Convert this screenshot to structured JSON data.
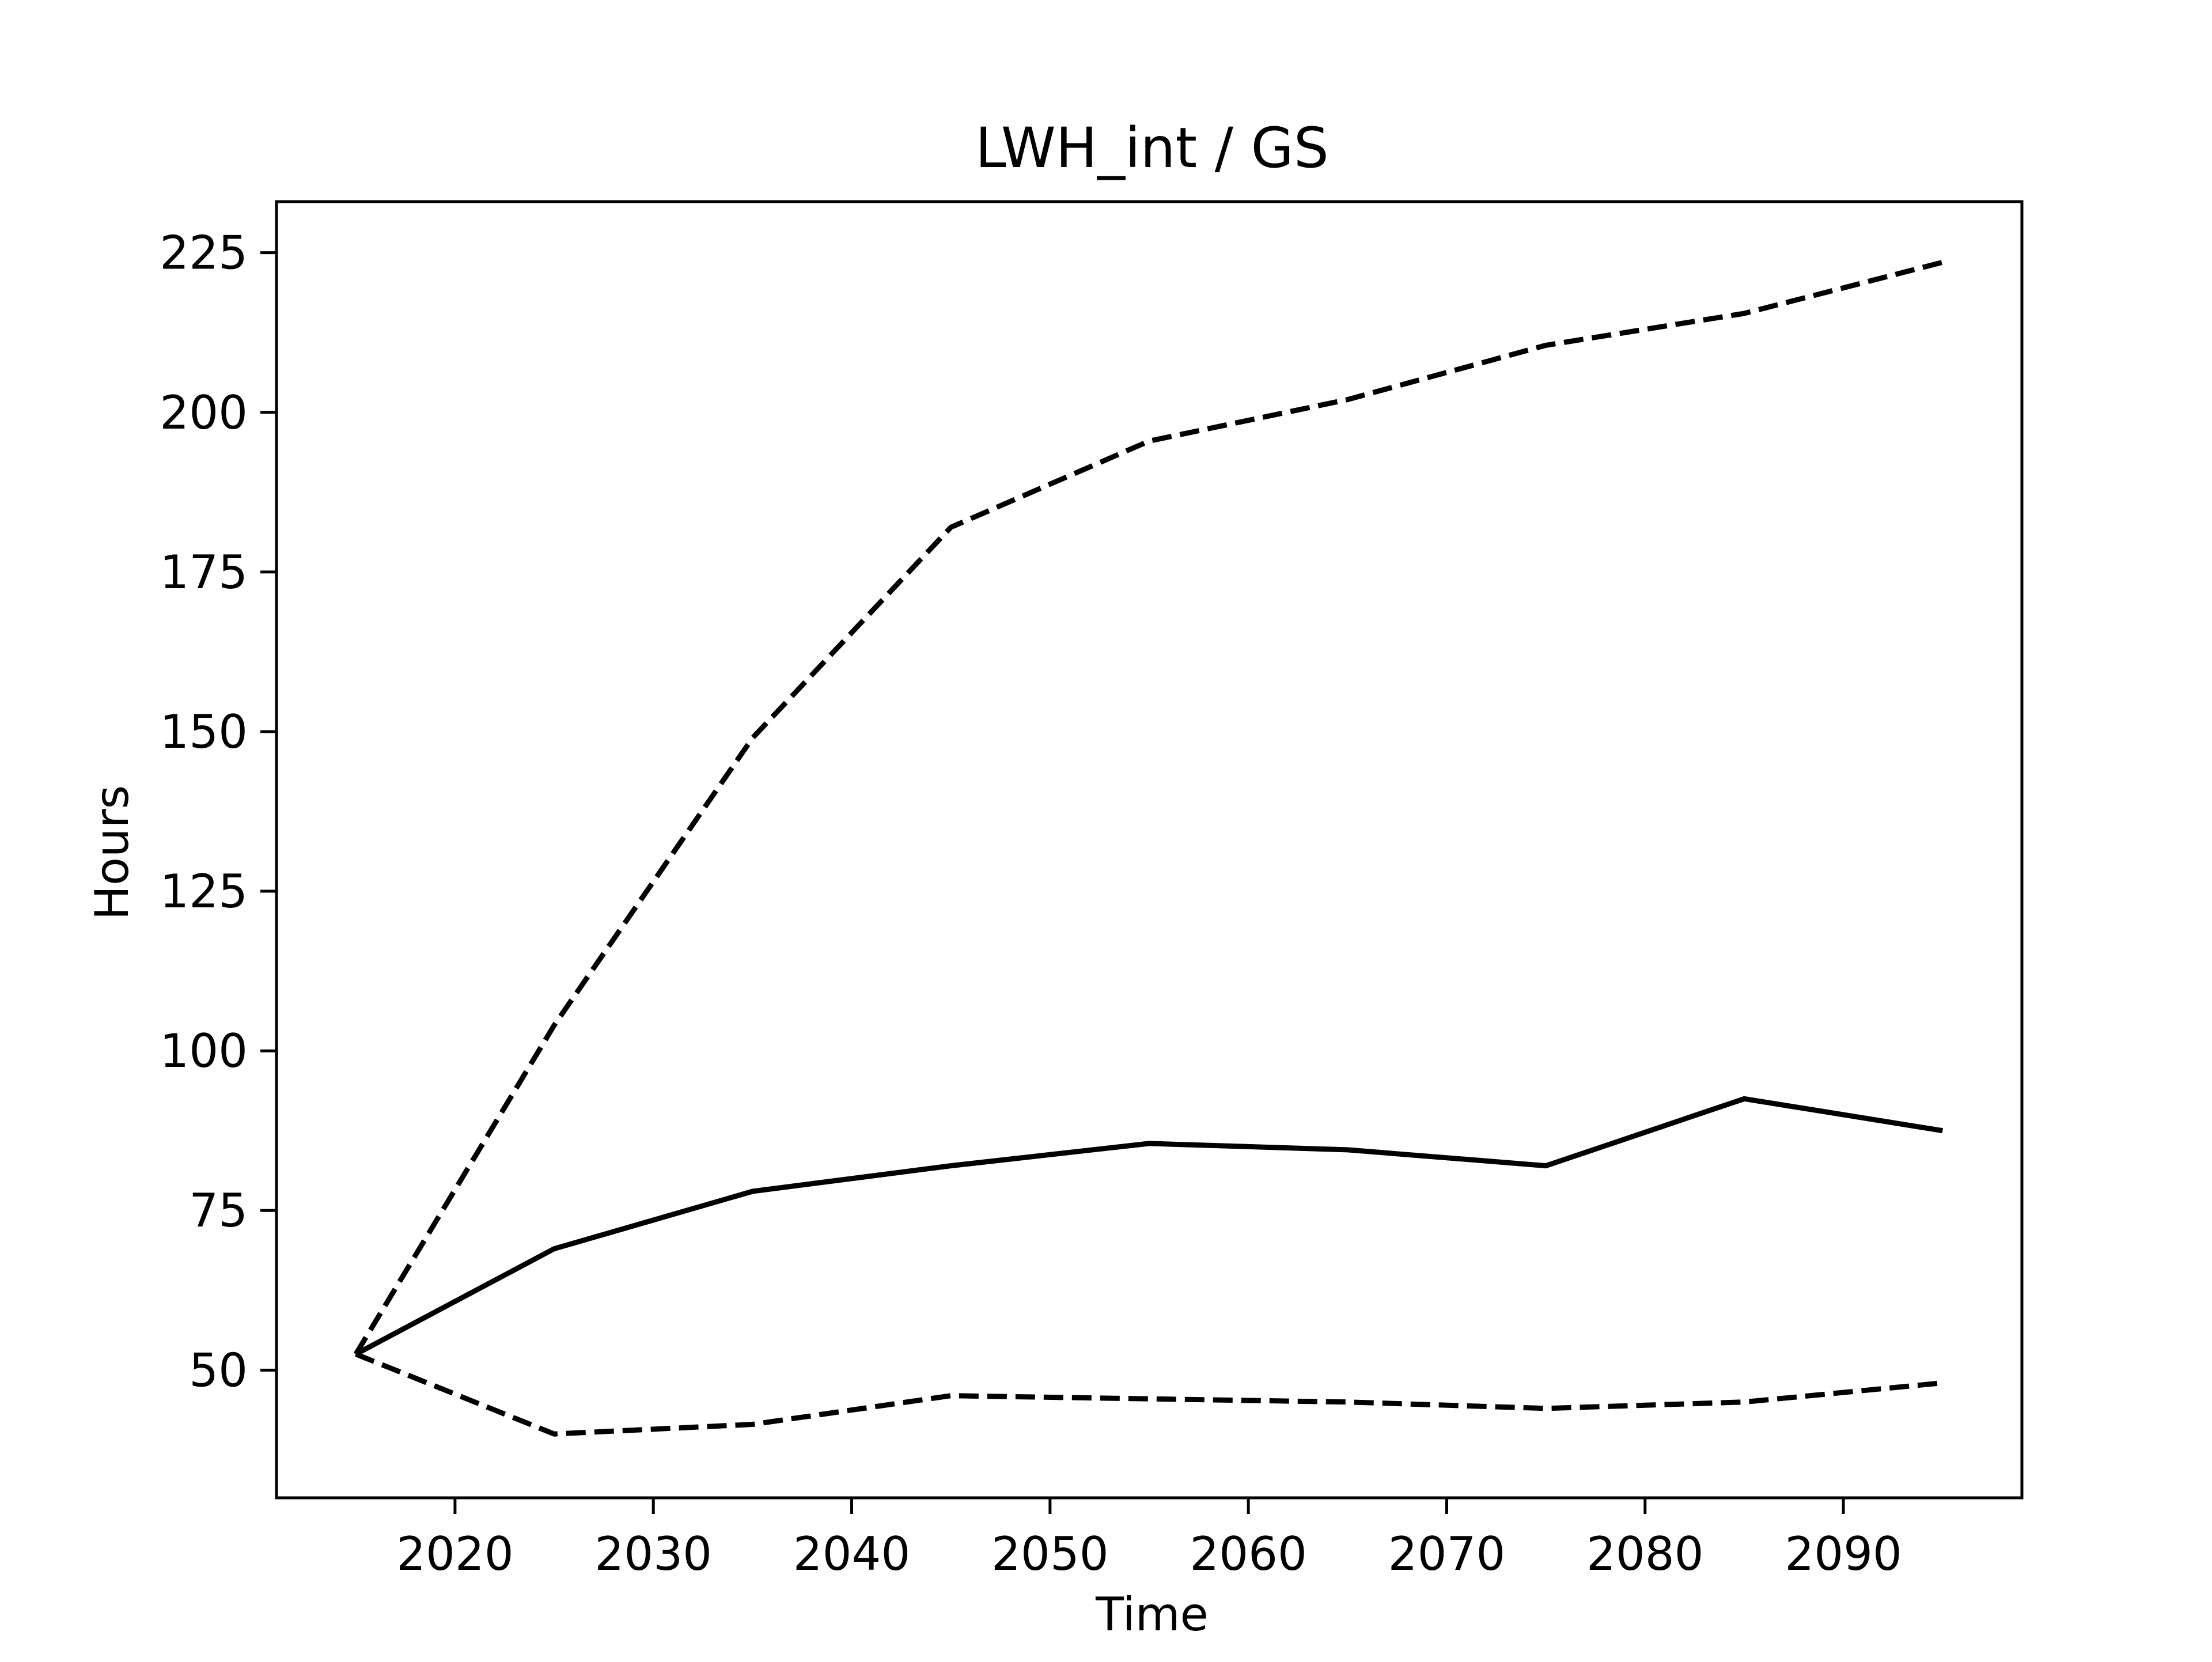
{
  "chart_data": {
    "type": "line",
    "title": "LWH_int / GS",
    "xlabel": "Time",
    "ylabel": "Hours",
    "xlim": [
      2011,
      2099
    ],
    "ylim": [
      30,
      233
    ],
    "xticks": [
      2020,
      2030,
      2040,
      2050,
      2060,
      2070,
      2080,
      2090
    ],
    "yticks": [
      50,
      75,
      100,
      125,
      150,
      175,
      200,
      225
    ],
    "grid": false,
    "legend": "none",
    "line_color": "#000000",
    "x": [
      2015,
      2025,
      2035,
      2045,
      2055,
      2065,
      2075,
      2085,
      2095
    ],
    "series": [
      {
        "style": "dashed",
        "values": [
          52.5,
          104,
          149,
          182,
          195.5,
          202,
          210.5,
          215.5,
          223.5
        ]
      },
      {
        "style": "solid",
        "values": [
          52.5,
          69,
          78,
          82,
          85.5,
          84.5,
          82,
          92.5,
          87.5
        ]
      },
      {
        "style": "dashed",
        "values": [
          52.5,
          40,
          41.5,
          46,
          45.5,
          45,
          44,
          45,
          48
        ]
      }
    ]
  }
}
